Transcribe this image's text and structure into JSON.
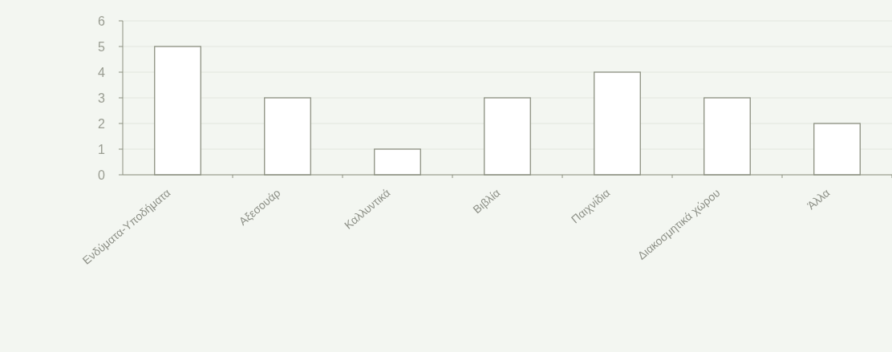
{
  "chart_data": {
    "type": "bar",
    "categories": [
      "Ενδύματα-Υποδήματα",
      "Αξεσουάρ",
      "Καλλυντικά",
      "Βιβλία",
      "Παιχνίδια",
      "Διακοσμητικά χώρου",
      "Άλλα"
    ],
    "values": [
      5,
      3,
      1,
      3,
      4,
      3,
      2
    ],
    "color": "#ffffff",
    "ylim": [
      0,
      6
    ],
    "yticks": [
      0,
      1,
      2,
      3,
      4,
      5,
      6
    ],
    "grid": "y"
  }
}
